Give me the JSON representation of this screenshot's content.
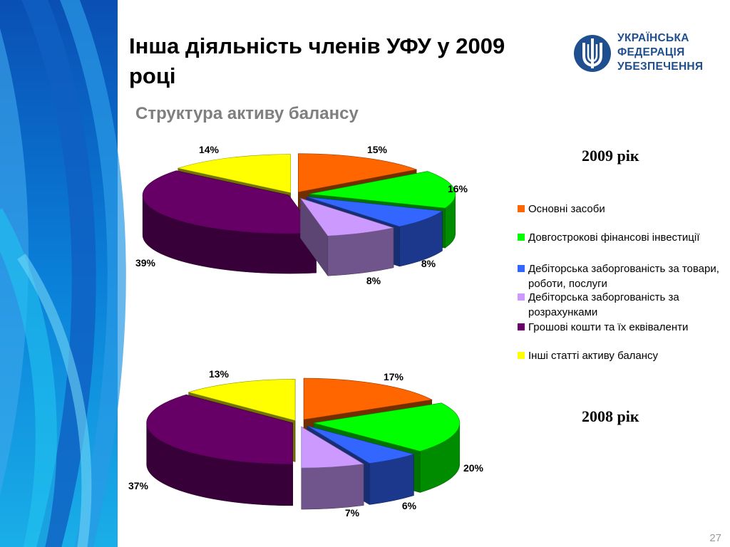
{
  "slide": {
    "title": "Інша діяльність членів УФУ у 2009 році",
    "subtitle": "Структура активу балансу",
    "logo_lines": [
      "УКРАЇНСЬКА",
      "ФЕДЕРАЦІЯ",
      "УБЕЗПЕЧЕННЯ"
    ],
    "page_number": "27"
  },
  "colors": {
    "categories": [
      "#ff6600",
      "#00ff00",
      "#3366ff",
      "#cc99ff",
      "#660066",
      "#ffff00"
    ],
    "logo": "#1f4f8f"
  },
  "chart_data": [
    {
      "type": "pie",
      "title": "2009 рік",
      "categories": [
        "Основні засоби",
        "Довгострокові фінансові інвестиції",
        "Дебіторська заборгованість за товари, роботи, послуги",
        "Дебіторська заборгованість за розрахунками",
        "Грошові кошти та їх еквіваленти",
        "Інші статті активу балансу"
      ],
      "values": [
        15,
        16,
        8,
        8,
        39,
        14
      ],
      "labels": [
        "15%",
        "16%",
        "8%",
        "8%",
        "39%",
        "14%"
      ],
      "style": "3d-exploded",
      "legend": "right"
    },
    {
      "type": "pie",
      "title": "2008 рік",
      "categories": [
        "Основні засоби",
        "Довгострокові фінансові інвестиції",
        "Дебіторська заборгованість за товари, роботи, послуги",
        "Дебіторська заборгованість за розрахунками",
        "Грошові кошти та їх еквіваленти",
        "Інші статті активу балансу"
      ],
      "values": [
        17,
        20,
        6,
        7,
        37,
        13
      ],
      "labels": [
        "17%",
        "20%",
        "6%",
        "7%",
        "37%",
        "13%"
      ],
      "style": "3d-exploded",
      "legend": "right"
    }
  ]
}
